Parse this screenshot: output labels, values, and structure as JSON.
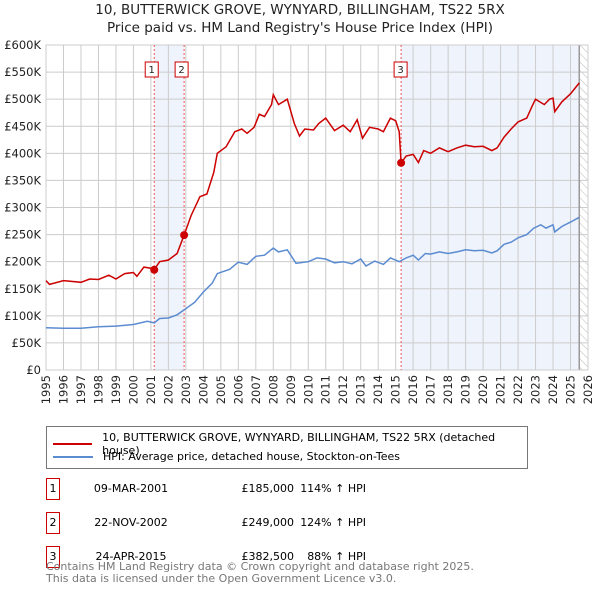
{
  "title": "10, BUTTERWICK GROVE, WYNYARD, BILLINGHAM, TS22 5RX",
  "subtitle": "Price paid vs. HM Land Registry's House Price Index (HPI)",
  "chart_data": {
    "type": "line",
    "title": "10, BUTTERWICK GROVE, WYNYARD, BILLINGHAM, TS22 5RX",
    "xlim": [
      1995,
      2026
    ],
    "ylim": [
      0,
      600000
    ],
    "x_ticks": [
      "1995",
      "1996",
      "1997",
      "1998",
      "1999",
      "2000",
      "2001",
      "2002",
      "2003",
      "2004",
      "2005",
      "2006",
      "2007",
      "2008",
      "2009",
      "2010",
      "2011",
      "2012",
      "2013",
      "2014",
      "2015",
      "2016",
      "2017",
      "2018",
      "2019",
      "2020",
      "2021",
      "2022",
      "2023",
      "2024",
      "2025",
      "2026"
    ],
    "y_ticks": [
      {
        "v": 0,
        "label": "£0"
      },
      {
        "v": 50000,
        "label": "£50K"
      },
      {
        "v": 100000,
        "label": "£100K"
      },
      {
        "v": 150000,
        "label": "£150K"
      },
      {
        "v": 200000,
        "label": "£200K"
      },
      {
        "v": 250000,
        "label": "£250K"
      },
      {
        "v": 300000,
        "label": "£300K"
      },
      {
        "v": 350000,
        "label": "£350K"
      },
      {
        "v": 400000,
        "label": "£400K"
      },
      {
        "v": 450000,
        "label": "£450K"
      },
      {
        "v": 500000,
        "label": "£500K"
      },
      {
        "v": 550000,
        "label": "£550K"
      },
      {
        "v": 600000,
        "label": "£600K"
      }
    ],
    "grid": true,
    "series": [
      {
        "name": "10, BUTTERWICK GROVE, WYNYARD, BILLINGHAM, TS22 5RX (detached house)",
        "color": "#cc0000",
        "x": [
          1995,
          1995.2,
          1996,
          1997,
          1997.5,
          1998,
          1998.6,
          1999,
          1999.5,
          2000,
          2000.2,
          2000.6,
          2001,
          2001.19,
          2001.5,
          2002,
          2002.5,
          2002.9,
          2003.3,
          2003.8,
          2004.2,
          2004.6,
          2004.8,
          2005.3,
          2005.8,
          2006.2,
          2006.5,
          2006.9,
          2007.2,
          2007.5,
          2007.9,
          2008,
          2008.3,
          2008.8,
          2009.2,
          2009.5,
          2009.8,
          2010.3,
          2010.6,
          2011,
          2011.5,
          2012,
          2012.4,
          2012.8,
          2013.1,
          2013.5,
          2014,
          2014.3,
          2014.7,
          2015,
          2015.2,
          2015.31,
          2015.6,
          2016,
          2016.3,
          2016.6,
          2017,
          2017.5,
          2018,
          2018.5,
          2019,
          2019.5,
          2020,
          2020.5,
          2020.8,
          2021.2,
          2021.6,
          2022,
          2022.5,
          2022.8,
          2023,
          2023.5,
          2023.8,
          2024,
          2024.1,
          2024.5,
          2025,
          2025.5
        ],
        "y": [
          165000,
          158000,
          165000,
          162000,
          168000,
          167000,
          175000,
          168000,
          178000,
          180000,
          173000,
          190000,
          188000,
          185000,
          200000,
          203000,
          215000,
          249000,
          285000,
          320000,
          325000,
          365000,
          400000,
          412000,
          440000,
          445000,
          437000,
          448000,
          472000,
          468000,
          490000,
          508000,
          490000,
          500000,
          455000,
          432000,
          445000,
          443000,
          455000,
          465000,
          442000,
          452000,
          440000,
          462000,
          428000,
          448000,
          445000,
          440000,
          465000,
          460000,
          440000,
          382500,
          395000,
          398000,
          383000,
          405000,
          400000,
          410000,
          403000,
          410000,
          415000,
          412000,
          413000,
          405000,
          410000,
          430000,
          445000,
          458000,
          465000,
          487000,
          500000,
          490000,
          500000,
          502000,
          477000,
          495000,
          510000,
          530000
        ]
      },
      {
        "name": "HPI: Average price, detached house, Stockton-on-Tees",
        "color": "#5b8bd0",
        "x": [
          1995,
          1996,
          1997,
          1998,
          1999,
          2000,
          2000.8,
          2001.19,
          2001.5,
          2002,
          2002.5,
          2002.9,
          2003.5,
          2004,
          2004.5,
          2004.8,
          2005.5,
          2006,
          2006.5,
          2007,
          2007.5,
          2008,
          2008.3,
          2008.8,
          2009.3,
          2010,
          2010.5,
          2011,
          2011.5,
          2012,
          2012.5,
          2013,
          2013.3,
          2013.8,
          2014.3,
          2014.7,
          2015.2,
          2015.6,
          2016,
          2016.3,
          2016.7,
          2017,
          2017.5,
          2018,
          2018.5,
          2019,
          2019.5,
          2020,
          2020.5,
          2020.8,
          2021.2,
          2021.6,
          2022,
          2022.5,
          2022.9,
          2023.3,
          2023.6,
          2024,
          2024.1,
          2024.5,
          2025,
          2025.5
        ],
        "y": [
          78000,
          77000,
          77000,
          80000,
          81000,
          84000,
          90000,
          87000,
          95000,
          96000,
          102000,
          111000,
          125000,
          144000,
          160000,
          178000,
          186000,
          199000,
          195000,
          210000,
          212000,
          225000,
          218000,
          222000,
          197000,
          200000,
          207000,
          205000,
          198000,
          200000,
          196000,
          205000,
          192000,
          201000,
          195000,
          207000,
          200000,
          207000,
          212000,
          203000,
          215000,
          214000,
          218000,
          215000,
          218000,
          222000,
          220000,
          221000,
          216000,
          220000,
          232000,
          236000,
          244000,
          250000,
          262000,
          268000,
          262000,
          268000,
          255000,
          265000,
          273000,
          282000
        ]
      }
    ],
    "sales": [
      {
        "label": "1",
        "date": "09-MAR-2001",
        "x": 2001.19,
        "price": "£185,000",
        "value": 185000,
        "hpi": "114% ↑ HPI"
      },
      {
        "label": "2",
        "date": "22-NOV-2002",
        "x": 2002.9,
        "price": "£249,000",
        "value": 249000,
        "hpi": "124% ↑ HPI"
      },
      {
        "label": "3",
        "date": "24-APR-2015",
        "x": 2015.31,
        "price": "£382,500",
        "value": 382500,
        "hpi": "88% ↑ HPI"
      }
    ],
    "forecast_start": 2025.5
  },
  "legend": {
    "red": "10, BUTTERWICK GROVE, WYNYARD, BILLINGHAM, TS22 5RX (detached house)",
    "blue": "HPI: Average price, detached house, Stockton-on-Tees"
  },
  "footer": [
    "Contains HM Land Registry data © Crown copyright and database right 2025.",
    "This data is licensed under the Open Government Licence v3.0."
  ]
}
